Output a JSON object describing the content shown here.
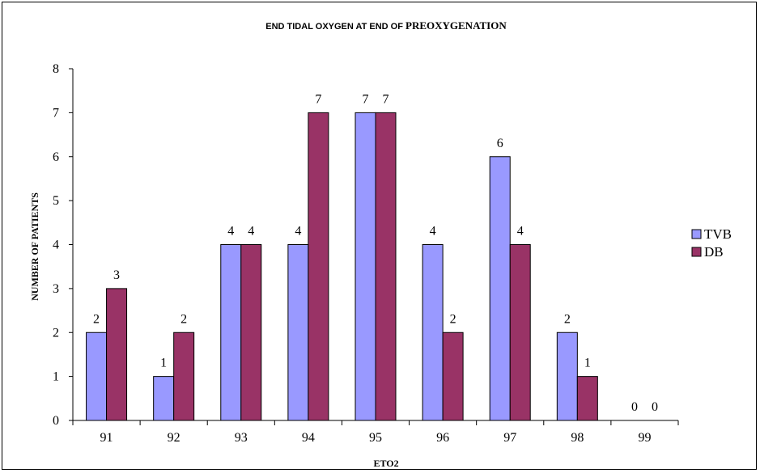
{
  "chart_data": {
    "type": "bar",
    "title_part1": "END TIDAL OXYGEN AT END OF ",
    "title_part2": "PREOXYGENATION",
    "xlabel": "ETO2",
    "ylabel": "NUMBER OF PATIENTS",
    "categories": [
      "91",
      "92",
      "93",
      "94",
      "95",
      "96",
      "97",
      "98",
      "99"
    ],
    "series": [
      {
        "name": "TVB",
        "color": "#9999ff",
        "values": [
          2,
          1,
          4,
          4,
          7,
          4,
          6,
          2,
          0
        ]
      },
      {
        "name": "DB",
        "color": "#993366",
        "values": [
          3,
          2,
          4,
          7,
          7,
          2,
          4,
          1,
          0
        ]
      }
    ],
    "ylim": [
      0,
      8
    ],
    "yticks": [
      "0",
      "1",
      "2",
      "3",
      "4",
      "5",
      "6",
      "7",
      "8"
    ],
    "grid": false,
    "legend_position": "right"
  }
}
